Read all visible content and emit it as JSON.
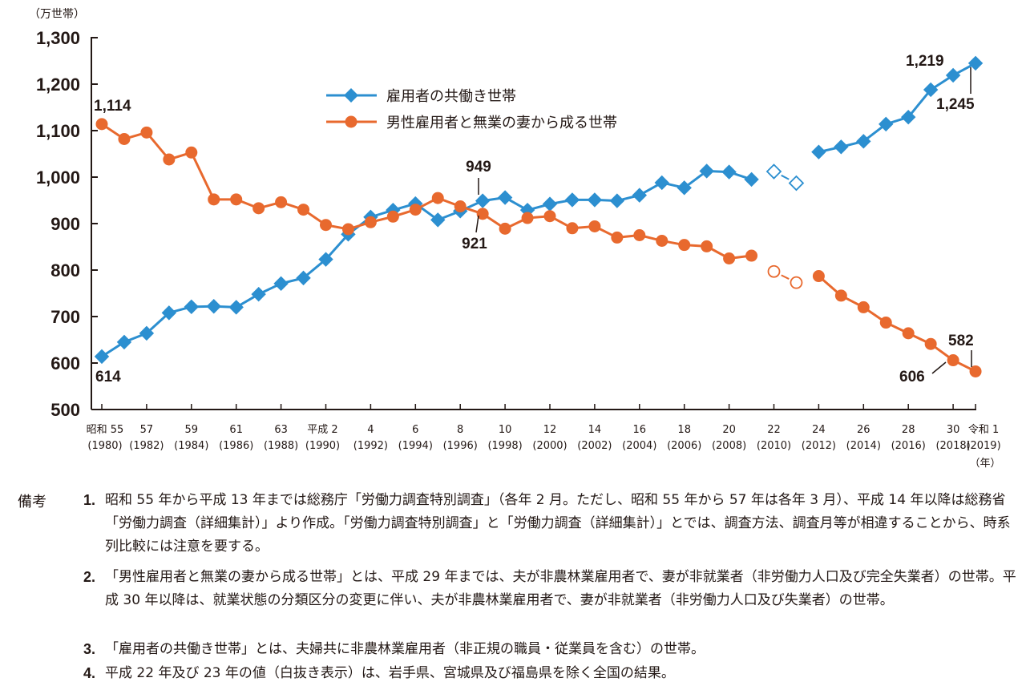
{
  "chart_data": {
    "type": "line",
    "ylabel": "（万世帯）",
    "xunit": "（年）",
    "ylim": [
      500,
      1300
    ],
    "yticks": [
      "500",
      "600",
      "700",
      "800",
      "900",
      "1,000",
      "1,100",
      "1,200",
      "1,300"
    ],
    "x_tick_labels": [
      {
        "era": "昭和 55",
        "year": "(1980)"
      },
      {
        "era": "57",
        "year": "(1982)"
      },
      {
        "era": "59",
        "year": "(1984)"
      },
      {
        "era": "61",
        "year": "(1986)"
      },
      {
        "era": "63",
        "year": "(1988)"
      },
      {
        "era": "平成 2",
        "year": "(1990)"
      },
      {
        "era": "4",
        "year": "(1992)"
      },
      {
        "era": "6",
        "year": "(1994)"
      },
      {
        "era": "8",
        "year": "(1996)"
      },
      {
        "era": "10",
        "year": "(1998)"
      },
      {
        "era": "12",
        "year": "(2000)"
      },
      {
        "era": "14",
        "year": "(2002)"
      },
      {
        "era": "16",
        "year": "(2004)"
      },
      {
        "era": "18",
        "year": "(2006)"
      },
      {
        "era": "20",
        "year": "(2008)"
      },
      {
        "era": "22",
        "year": "(2010)"
      },
      {
        "era": "24",
        "year": "(2012)"
      },
      {
        "era": "26",
        "year": "(2014)"
      },
      {
        "era": "28",
        "year": "(2016)"
      },
      {
        "era": "30",
        "year": "(2018)"
      },
      {
        "era": "令和 1",
        "year": "(2019)"
      }
    ],
    "x": [
      1980,
      1981,
      1982,
      1983,
      1984,
      1985,
      1986,
      1987,
      1988,
      1989,
      1990,
      1991,
      1992,
      1993,
      1994,
      1995,
      1996,
      1997,
      1998,
      1999,
      2000,
      2001,
      2002,
      2003,
      2004,
      2005,
      2006,
      2007,
      2008,
      2009,
      2010,
      2011,
      2012,
      2013,
      2014,
      2015,
      2016,
      2017,
      2018,
      2019
    ],
    "hollow_years": [
      2010,
      2011
    ],
    "series": [
      {
        "name": "雇用者の共働き世帯",
        "color": "#2c8fd0",
        "marker": "diamond",
        "values": [
          614,
          645,
          664,
          708,
          721,
          722,
          720,
          748,
          771,
          783,
          823,
          877,
          914,
          929,
          943,
          908,
          927,
          949,
          956,
          929,
          942,
          951,
          951,
          949,
          961,
          988,
          977,
          1013,
          1011,
          995,
          1012,
          987,
          1054,
          1065,
          1077,
          1114,
          1129,
          1188,
          1219,
          1245
        ]
      },
      {
        "name": "男性雇用者と無業の妻から成る世帯",
        "color": "#e8692e",
        "marker": "circle",
        "values": [
          1114,
          1082,
          1096,
          1038,
          1053,
          952,
          952,
          933,
          946,
          930,
          897,
          888,
          903,
          915,
          930,
          955,
          937,
          921,
          889,
          912,
          916,
          890,
          894,
          870,
          875,
          863,
          854,
          851,
          825,
          831,
          797,
          773,
          787,
          745,
          720,
          687,
          664,
          641,
          606,
          582
        ]
      }
    ],
    "annotations": [
      {
        "text": "1,114"
      },
      {
        "text": "614"
      },
      {
        "text": "949"
      },
      {
        "text": "921"
      },
      {
        "text": "1,219"
      },
      {
        "text": "1,245"
      },
      {
        "text": "582"
      },
      {
        "text": "606"
      }
    ]
  },
  "notes": {
    "label": "備考",
    "items": [
      {
        "num": "1.",
        "text": "昭和 55 年から平成 13 年までは総務庁「労働力調査特別調査」（各年 2 月。ただし、昭和 55 年から 57 年は各年 3 月）、平成 14 年以降は総務省「労働力調査（詳細集計）」より作成。「労働力調査特別調査」と「労働力調査（詳細集計）」とでは、調査方法、調査月等が相違することから、時系列比較には注意を要する。"
      },
      {
        "num": "2.",
        "text": "「男性雇用者と無業の妻から成る世帯」とは、平成 29 年までは、夫が非農林業雇用者で、妻が非就業者（非労働力人口及び完全失業者）の世帯。平成 30 年以降は、就業状態の分類区分の変更に伴い、夫が非農林業雇用者で、妻が非就業者（非労働力人口及び失業者）の世帯。"
      },
      {
        "num": "3.",
        "text": "「雇用者の共働き世帯」とは、夫婦共に非農林業雇用者（非正規の職員・従業員を含む）の世帯。"
      },
      {
        "num": "4.",
        "text": "平成 22 年及び 23 年の値（白抜き表示）は、岩手県、宮城県及び福島県を除く全国の結果。"
      }
    ]
  }
}
